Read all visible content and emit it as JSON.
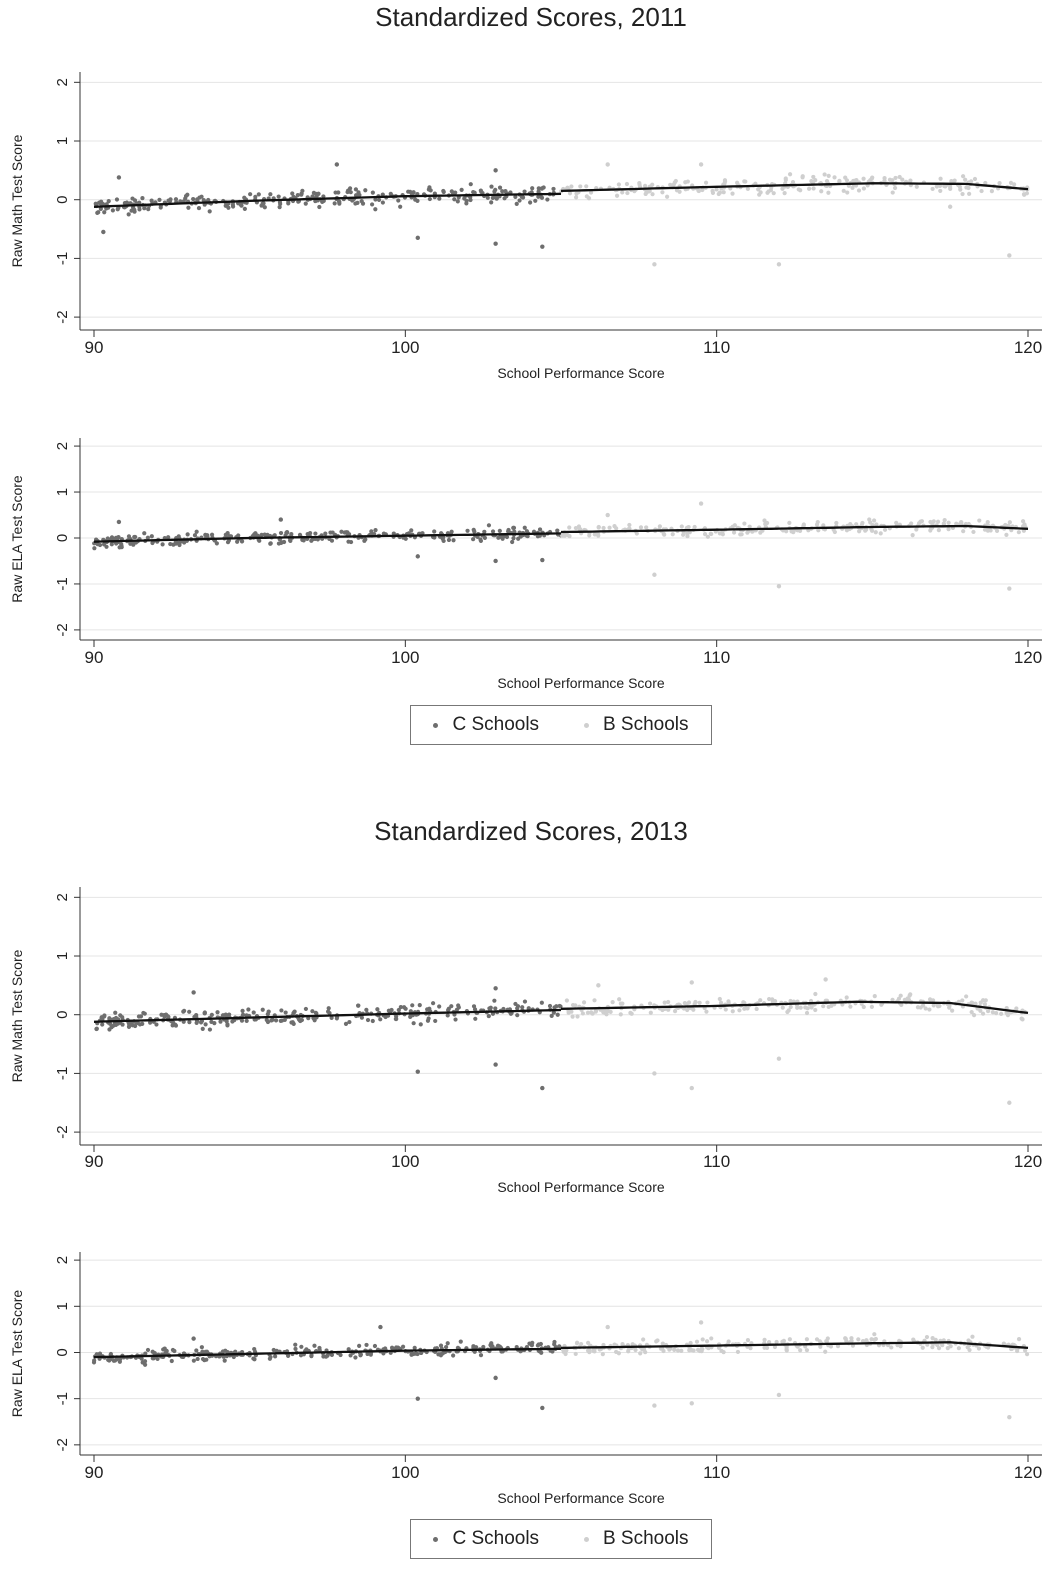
{
  "colors": {
    "c_schools": "#6e6e6e",
    "b_schools": "#cfcfcf",
    "fit_line": "#111111",
    "grid": "#e4e4e4"
  },
  "legend": {
    "c_label": "C Schools",
    "b_label": "B Schools"
  },
  "figures": [
    {
      "title": "Standardized Scores, 2011"
    },
    {
      "title": "Standardized Scores, 2013"
    }
  ],
  "chart_data": [
    {
      "type": "scatter",
      "title": "Standardized Scores, 2011",
      "xlabel": "School Performance Score",
      "ylabel": "Raw Math Test Score",
      "xlim": [
        90,
        120
      ],
      "ylim": [
        -2,
        2
      ],
      "xticks": [
        "90",
        "100",
        "110",
        "120"
      ],
      "yticks": [
        "2",
        "1",
        "0",
        "-1",
        "-2"
      ],
      "grid": true,
      "series": [
        {
          "name": "C Schools",
          "x_range": [
            90,
            105
          ],
          "fit": [
            [
              90,
              -0.12
            ],
            [
              95,
              -0.02
            ],
            [
              100,
              0.06
            ],
            [
              105,
              0.1
            ]
          ],
          "outliers": [
            [
              100.4,
              -0.65
            ],
            [
              102.9,
              -0.75
            ],
            [
              104.4,
              -0.8
            ],
            [
              97.8,
              0.6
            ],
            [
              102.9,
              0.5
            ],
            [
              90.8,
              0.38
            ],
            [
              90.3,
              -0.55
            ]
          ]
        },
        {
          "name": "B Schools",
          "x_range": [
            105,
            120
          ],
          "fit": [
            [
              105,
              0.15
            ],
            [
              110,
              0.22
            ],
            [
              115,
              0.28
            ],
            [
              118,
              0.27
            ],
            [
              120,
              0.18
            ]
          ],
          "outliers": [
            [
              108,
              -1.1
            ],
            [
              112,
              -1.1
            ],
            [
              119.4,
              -0.95
            ],
            [
              106.5,
              0.6
            ],
            [
              109.5,
              0.6
            ],
            [
              117.5,
              -0.12
            ]
          ]
        }
      ]
    },
    {
      "type": "scatter",
      "xlabel": "School Performance Score",
      "ylabel": "Raw ELA Test Score",
      "xlim": [
        90,
        120
      ],
      "ylim": [
        -2,
        2
      ],
      "xticks": [
        "90",
        "100",
        "110",
        "120"
      ],
      "yticks": [
        "2",
        "1",
        "0",
        "-1",
        "-2"
      ],
      "grid": true,
      "series": [
        {
          "name": "C Schools",
          "x_range": [
            90,
            105
          ],
          "fit": [
            [
              90,
              -0.08
            ],
            [
              95,
              0.0
            ],
            [
              100,
              0.05
            ],
            [
              105,
              0.1
            ]
          ],
          "outliers": [
            [
              102.9,
              -0.5
            ],
            [
              104.4,
              -0.48
            ],
            [
              100.4,
              -0.4
            ],
            [
              96,
              0.4
            ],
            [
              90.8,
              0.35
            ]
          ]
        },
        {
          "name": "B Schools",
          "x_range": [
            105,
            120
          ],
          "fit": [
            [
              105,
              0.13
            ],
            [
              110,
              0.18
            ],
            [
              115,
              0.24
            ],
            [
              118,
              0.26
            ],
            [
              120,
              0.2
            ]
          ],
          "outliers": [
            [
              108,
              -0.8
            ],
            [
              112,
              -1.05
            ],
            [
              119.4,
              -1.1
            ],
            [
              109.5,
              0.75
            ],
            [
              106.5,
              0.5
            ]
          ]
        }
      ]
    },
    {
      "type": "scatter",
      "title": "Standardized Scores, 2013",
      "xlabel": "School Performance Score",
      "ylabel": "Raw Math Test Score",
      "xlim": [
        90,
        120
      ],
      "ylim": [
        -2,
        2
      ],
      "xticks": [
        "90",
        "100",
        "110",
        "120"
      ],
      "yticks": [
        "2",
        "1",
        "0",
        "-1",
        "-2"
      ],
      "grid": true,
      "series": [
        {
          "name": "C Schools",
          "x_range": [
            90,
            105
          ],
          "fit": [
            [
              90,
              -0.12
            ],
            [
              95,
              -0.05
            ],
            [
              100,
              0.02
            ],
            [
              105,
              0.08
            ]
          ],
          "outliers": [
            [
              100.4,
              -0.97
            ],
            [
              102.9,
              -0.85
            ],
            [
              104.4,
              -1.25
            ],
            [
              93.2,
              0.38
            ],
            [
              102.9,
              0.45
            ]
          ]
        },
        {
          "name": "B Schools",
          "x_range": [
            105,
            120
          ],
          "fit": [
            [
              105,
              0.1
            ],
            [
              110,
              0.15
            ],
            [
              114.5,
              0.22
            ],
            [
              117.5,
              0.2
            ],
            [
              120,
              0.03
            ]
          ],
          "outliers": [
            [
              108,
              -1.0
            ],
            [
              109.2,
              -1.25
            ],
            [
              112,
              -0.75
            ],
            [
              119.4,
              -1.5
            ],
            [
              106.2,
              0.5
            ],
            [
              109.2,
              0.55
            ],
            [
              113.5,
              0.6
            ]
          ]
        }
      ]
    },
    {
      "type": "scatter",
      "xlabel": "School Performance Score",
      "ylabel": "Raw ELA Test Score",
      "xlim": [
        90,
        120
      ],
      "ylim": [
        -2,
        2
      ],
      "xticks": [
        "90",
        "100",
        "110",
        "120"
      ],
      "yticks": [
        "2",
        "1",
        "0",
        "-1",
        "-2"
      ],
      "grid": true,
      "series": [
        {
          "name": "C Schools",
          "x_range": [
            90,
            105
          ],
          "fit": [
            [
              90,
              -0.1
            ],
            [
              95,
              -0.03
            ],
            [
              100,
              0.04
            ],
            [
              105,
              0.08
            ]
          ],
          "outliers": [
            [
              100.4,
              -1.0
            ],
            [
              102.9,
              -0.55
            ],
            [
              104.4,
              -1.2
            ],
            [
              99.2,
              0.55
            ],
            [
              93.2,
              0.3
            ]
          ]
        },
        {
          "name": "B Schools",
          "x_range": [
            105,
            120
          ],
          "fit": [
            [
              105,
              0.1
            ],
            [
              110,
              0.15
            ],
            [
              115,
              0.2
            ],
            [
              117.5,
              0.22
            ],
            [
              120,
              0.1
            ]
          ],
          "outliers": [
            [
              108,
              -1.15
            ],
            [
              109.2,
              -1.1
            ],
            [
              112,
              -0.92
            ],
            [
              119.4,
              -1.4
            ],
            [
              109.5,
              0.65
            ],
            [
              106.5,
              0.55
            ]
          ]
        }
      ]
    }
  ]
}
